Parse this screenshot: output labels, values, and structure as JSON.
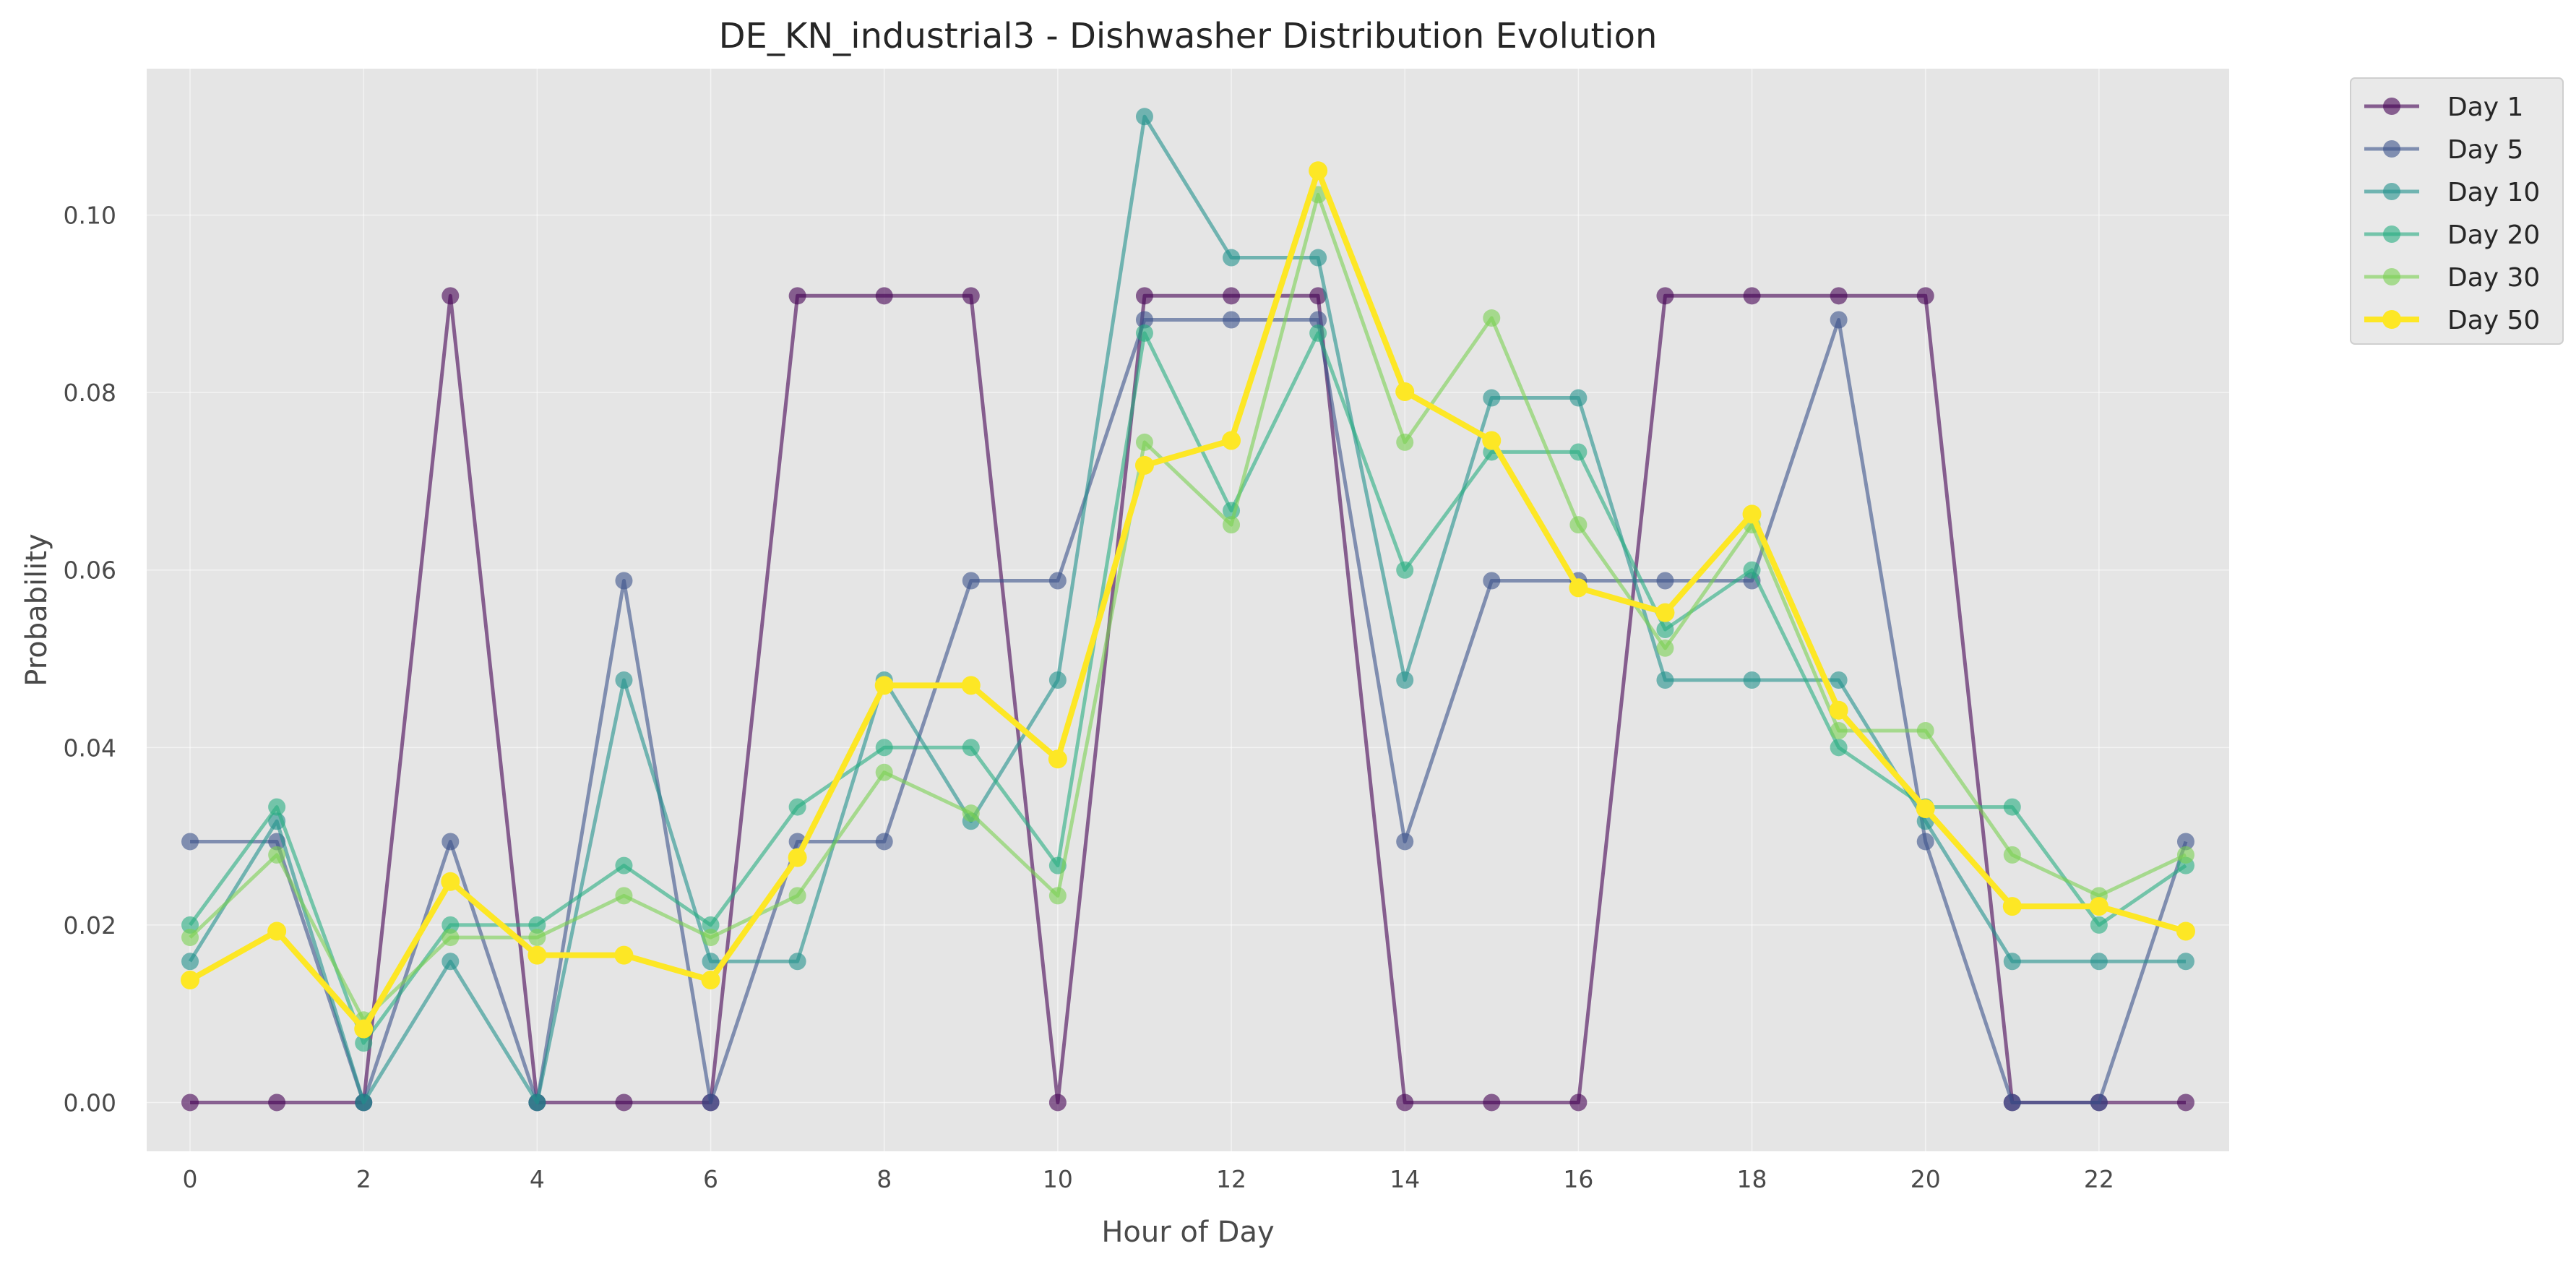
{
  "chart_data": {
    "type": "line",
    "title": "DE_KN_industrial3 - Dishwasher Distribution Evolution",
    "xlabel": "Hour of Day",
    "ylabel": "Probability",
    "xlim": [
      -0.5,
      23.5
    ],
    "ylim": [
      -0.0055,
      0.1165
    ],
    "x_ticks": [
      0,
      2,
      4,
      6,
      8,
      10,
      12,
      14,
      16,
      18,
      20,
      22
    ],
    "y_ticks": [
      0.0,
      0.02,
      0.04,
      0.06,
      0.08,
      0.1
    ],
    "y_tick_labels": [
      "0.00",
      "0.02",
      "0.04",
      "0.06",
      "0.08",
      "0.10"
    ],
    "grid": true,
    "legend_position": "outside top-right",
    "x": [
      0,
      1,
      2,
      3,
      4,
      5,
      6,
      7,
      8,
      9,
      10,
      11,
      12,
      13,
      14,
      15,
      16,
      17,
      18,
      19,
      20,
      21,
      22,
      23
    ],
    "series": [
      {
        "name": "Day 1",
        "color": "#440154",
        "values": [
          0.0,
          0.0,
          0.0,
          0.0909,
          0.0,
          0.0,
          0.0,
          0.0909,
          0.0909,
          0.0909,
          0.0,
          0.0909,
          0.0909,
          0.0909,
          0.0,
          0.0,
          0.0,
          0.0909,
          0.0909,
          0.0909,
          0.0909,
          0.0,
          0.0,
          0.0
        ]
      },
      {
        "name": "Day 5",
        "color": "#3b528b",
        "values": [
          0.0294,
          0.0294,
          0.0,
          0.0294,
          0.0,
          0.0588,
          0.0,
          0.0294,
          0.0294,
          0.0588,
          0.0588,
          0.0882,
          0.0882,
          0.0882,
          0.0294,
          0.0588,
          0.0588,
          0.0588,
          0.0588,
          0.0882,
          0.0294,
          0.0,
          0.0,
          0.0294
        ]
      },
      {
        "name": "Day 10",
        "color": "#21918c",
        "values": [
          0.0159,
          0.0317,
          0.0,
          0.0159,
          0.0,
          0.0476,
          0.0159,
          0.0159,
          0.0476,
          0.0317,
          0.0476,
          0.1111,
          0.0952,
          0.0952,
          0.0476,
          0.0794,
          0.0794,
          0.0476,
          0.0476,
          0.0476,
          0.0317,
          0.0159,
          0.0159,
          0.0159
        ]
      },
      {
        "name": "Day 20",
        "color": "#27ad81",
        "values": [
          0.02,
          0.0333,
          0.0067,
          0.02,
          0.02,
          0.0267,
          0.02,
          0.0333,
          0.04,
          0.04,
          0.0267,
          0.0867,
          0.0667,
          0.0867,
          0.06,
          0.0733,
          0.0733,
          0.0533,
          0.06,
          0.04,
          0.0333,
          0.0333,
          0.02,
          0.0267
        ]
      },
      {
        "name": "Day 30",
        "color": "#7ad151",
        "values": [
          0.0186,
          0.0279,
          0.0093,
          0.0186,
          0.0186,
          0.0233,
          0.0186,
          0.0233,
          0.0372,
          0.0326,
          0.0233,
          0.0744,
          0.0651,
          0.1023,
          0.0744,
          0.0884,
          0.0651,
          0.0512,
          0.0651,
          0.0419,
          0.0419,
          0.0279,
          0.0233,
          0.0279
        ]
      },
      {
        "name": "Day 50",
        "color": "#fde725",
        "values": [
          0.0138,
          0.0193,
          0.0083,
          0.0249,
          0.0166,
          0.0166,
          0.0138,
          0.0276,
          0.047,
          0.047,
          0.0387,
          0.0718,
          0.0746,
          0.105,
          0.0801,
          0.0746,
          0.058,
          0.0552,
          0.0663,
          0.0442,
          0.0331,
          0.0221,
          0.0221,
          0.0193
        ]
      }
    ]
  }
}
